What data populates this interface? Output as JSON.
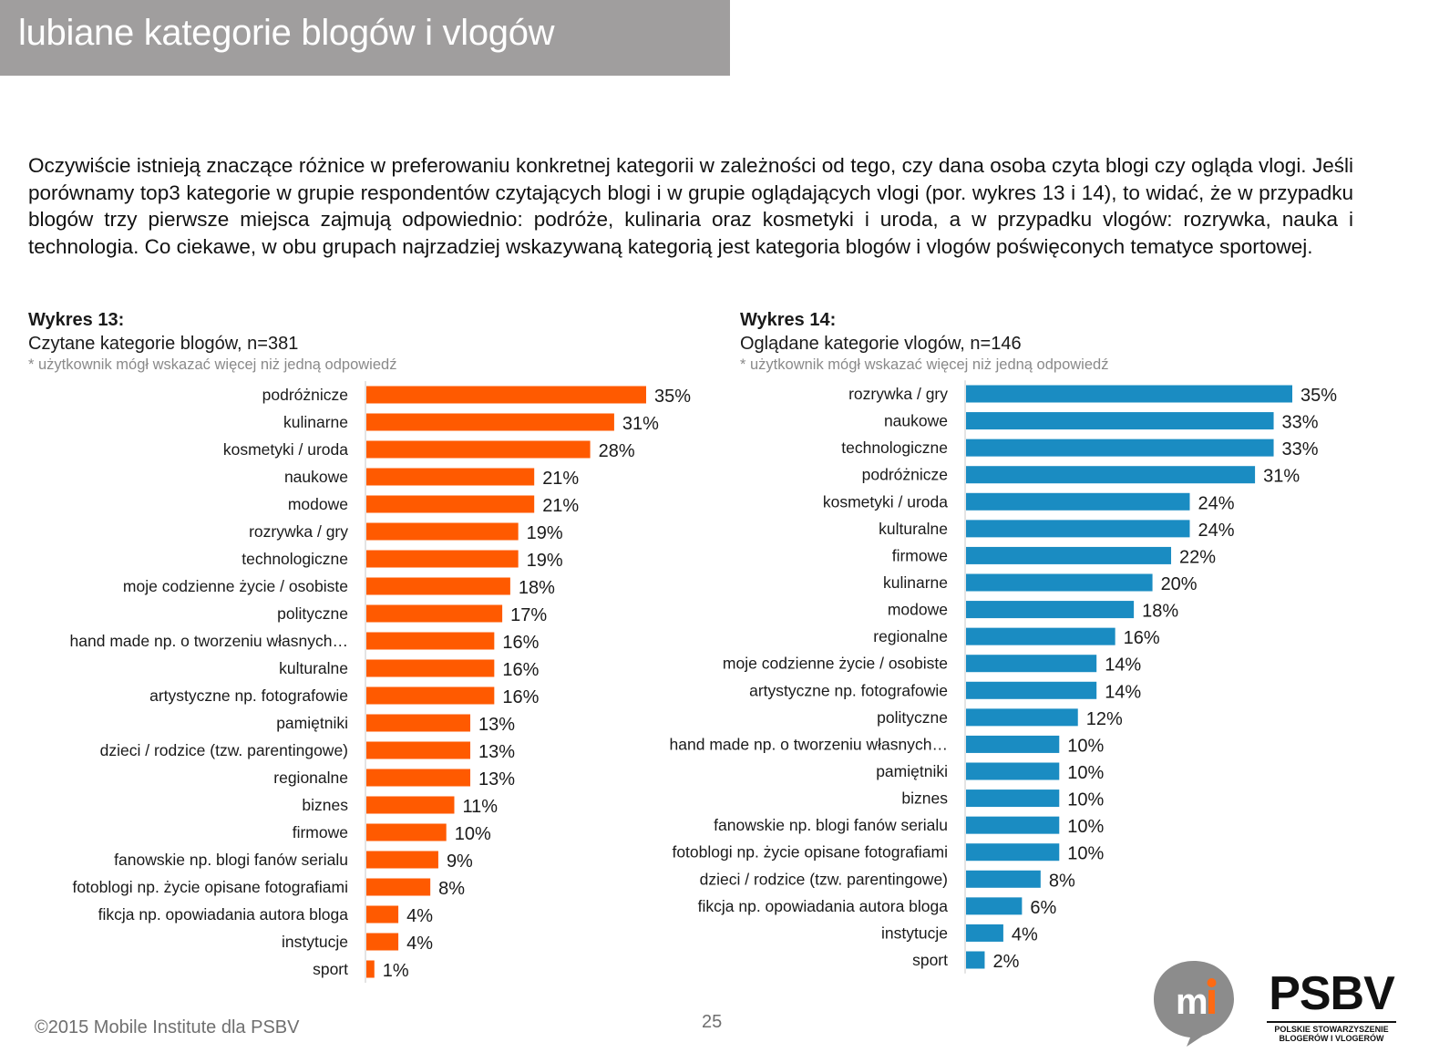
{
  "header": {
    "title": "lubiane kategorie blogów i vlogów"
  },
  "intro": {
    "text": "Oczywiście istnieją znaczące różnice w preferowaniu konkretnej kategorii w zależności od tego, czy dana osoba czyta blogi czy ogląda vlogi.  Jeśli porównamy top3 kategorie w grupie respondentów czytających blogi i w grupie oglądających vlogi (por. wykres 13 i 14), to widać, że w przypadku blogów trzy pierwsze miejsca zajmują odpowiednio: podróże, kulinaria oraz kosmetyki i uroda, a w przypadku vlogów: rozrywka, nauka i technologia. Co ciekawe, w obu grupach najrzadziej wskazywaną kategorią jest kategoria blogów i vlogów poświęconych tematyce sportowej."
  },
  "chart_data": [
    {
      "type": "bar",
      "orientation": "horizontal",
      "title": "Wykres 13:",
      "subtitle": "Czytane kategorie blogów, n=381",
      "note": "* użytkownik mógł wskazać więcej niż jedną odpowiedź",
      "color": "#ff5a00",
      "unit": "%",
      "xlim": [
        0,
        35
      ],
      "categories": [
        "podróżnicze",
        "kulinarne",
        "kosmetyki / uroda",
        "naukowe",
        "modowe",
        "rozrywka / gry",
        "technologiczne",
        "moje codzienne życie / osobiste",
        "polityczne",
        "hand made np. o tworzeniu własnych…",
        "kulturalne",
        "artystyczne np. fotografowie",
        "pamiętniki",
        "dzieci / rodzice (tzw. parentingowe)",
        "regionalne",
        "biznes",
        "firmowe",
        "fanowskie np. blogi fanów serialu",
        "fotoblogi np. życie opisane fotografiami",
        "fikcja np. opowiadania autora bloga",
        "instytucje",
        "sport"
      ],
      "values": [
        35,
        31,
        28,
        21,
        21,
        19,
        19,
        18,
        17,
        16,
        16,
        16,
        13,
        13,
        13,
        11,
        10,
        9,
        8,
        4,
        4,
        1
      ]
    },
    {
      "type": "bar",
      "orientation": "horizontal",
      "title": "Wykres 14:",
      "subtitle": "Oglądane kategorie vlogów, n=146",
      "note": "* użytkownik mógł wskazać więcej niż jedną odpowiedź",
      "color": "#1a8cc2",
      "unit": "%",
      "xlim": [
        0,
        35
      ],
      "categories": [
        "rozrywka / gry",
        "naukowe",
        "technologiczne",
        "podróżnicze",
        "kosmetyki / uroda",
        "kulturalne",
        "firmowe",
        "kulinarne",
        "modowe",
        "regionalne",
        "moje codzienne życie / osobiste",
        "artystyczne np. fotografowie",
        "polityczne",
        "hand made np. o tworzeniu własnych…",
        "pamiętniki",
        "biznes",
        "fanowskie np. blogi fanów serialu",
        "fotoblogi np. życie opisane fotografiami",
        "dzieci / rodzice (tzw. parentingowe)",
        "fikcja np. opowiadania autora bloga",
        "instytucje",
        "sport"
      ],
      "values": [
        35,
        33,
        33,
        31,
        24,
        24,
        22,
        20,
        18,
        16,
        14,
        14,
        12,
        10,
        10,
        10,
        10,
        10,
        8,
        6,
        4,
        2
      ]
    }
  ],
  "footer": {
    "copyright": "©2015 Mobile Institute dla PSBV",
    "page_number": "25"
  },
  "logos": {
    "mi_icon": "mobile-institute-logo",
    "psbv_name": "PSBV",
    "psbv_tagline": "POLSKIE STOWARZYSZENIE BLOGERÓW I VLOGERÓW"
  }
}
